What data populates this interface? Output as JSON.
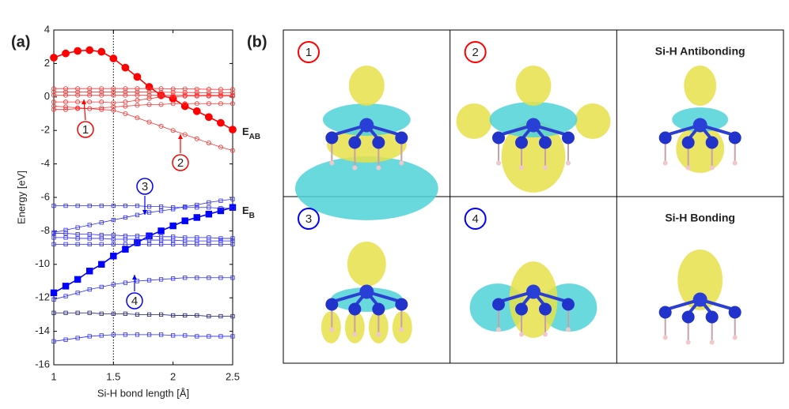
{
  "panel_a_label": "(a)",
  "panel_b_label": "(b)",
  "chart_data": {
    "type": "line",
    "x_label": "Si-H bond length [Å]",
    "y_label": "Energy [eV]",
    "xlim": [
      1,
      2.5
    ],
    "xticks": [
      1,
      1.5,
      2,
      2.5
    ],
    "ylim": [
      -16,
      4
    ],
    "yticks": [
      -16,
      -14,
      -12,
      -10,
      -8,
      -6,
      -4,
      -2,
      0,
      2,
      4
    ],
    "vline": 1.5,
    "x": [
      1,
      1.1,
      1.2,
      1.3,
      1.4,
      1.5,
      1.6,
      1.7,
      1.8,
      1.9,
      2,
      2.1,
      2.2,
      2.3,
      2.4,
      2.5
    ],
    "series": [
      {
        "color": "#ff0000",
        "marker": "circle",
        "filled": true,
        "values": [
          2.35,
          2.6,
          2.75,
          2.8,
          2.7,
          2.3,
          1.75,
          1.2,
          0.6,
          0.1,
          -0.1,
          -0.55,
          -0.85,
          -1.2,
          -1.55,
          -1.95
        ]
      },
      {
        "color": "#ff3030",
        "marker": "circle",
        "filled": false,
        "values": [
          0.5,
          0.5,
          0.5,
          0.5,
          0.5,
          0.5,
          0.5,
          0.5,
          0.5,
          0.5,
          0.48,
          0.48,
          0.47,
          0.46,
          0.45,
          0.45
        ]
      },
      {
        "color": "#ff3030",
        "marker": "circle",
        "filled": false,
        "values": [
          0.3,
          0.3,
          0.3,
          0.3,
          0.3,
          0.3,
          0.3,
          0.3,
          0.3,
          0.28,
          0.28,
          0.27,
          0.26,
          0.25,
          0.25,
          0.25
        ]
      },
      {
        "color": "#ff3030",
        "marker": "circle",
        "filled": false,
        "values": [
          0.1,
          0.1,
          0.1,
          0.1,
          0.1,
          0.1,
          0.1,
          0.1,
          0.1,
          0.1,
          0.1,
          0.1,
          0.1,
          0.1,
          0.1,
          0.1
        ]
      },
      {
        "color": "#ff3030",
        "marker": "circle",
        "filled": false,
        "values": [
          -0.3,
          -0.3,
          -0.3,
          -0.3,
          -0.3,
          -0.35,
          -0.3,
          -0.2,
          -0.1,
          0,
          0,
          0.05,
          0.05,
          0.05,
          0.05,
          0.05
        ]
      },
      {
        "color": "#ff3030",
        "marker": "circle",
        "filled": false,
        "values": [
          -0.75,
          -0.75,
          -0.7,
          -0.7,
          -0.65,
          -0.6,
          -0.55,
          -0.5,
          -0.45,
          -0.45,
          -0.4,
          -0.4,
          -0.4,
          -0.4,
          -0.4,
          -0.4
        ]
      },
      {
        "color": "#ff3030",
        "marker": "circle",
        "filled": false,
        "values": [
          -0.55,
          -0.6,
          -0.65,
          -0.7,
          -0.75,
          -0.8,
          -1.0,
          -1.25,
          -1.5,
          -1.75,
          -2.0,
          -2.25,
          -2.5,
          -2.75,
          -3.0,
          -3.2
        ]
      },
      {
        "color": "#0000ff",
        "marker": "square",
        "filled": true,
        "values": [
          -11.7,
          -11.3,
          -10.9,
          -10.4,
          -10.0,
          -9.5,
          -9.1,
          -8.7,
          -8.3,
          -8.0,
          -7.7,
          -7.4,
          -7.2,
          -7.0,
          -6.8,
          -6.6
        ]
      },
      {
        "color": "#2a2aff",
        "marker": "square",
        "filled": false,
        "values": [
          -6.5,
          -6.5,
          -6.5,
          -6.5,
          -6.5,
          -6.5,
          -6.5,
          -6.5,
          -6.55,
          -6.55,
          -6.6,
          -6.6,
          -6.6,
          -6.6,
          -6.65,
          -6.65
        ]
      },
      {
        "color": "#2a2aff",
        "marker": "square",
        "filled": false,
        "values": [
          -8.1,
          -7.95,
          -7.8,
          -7.65,
          -7.5,
          -7.35,
          -7.2,
          -7.05,
          -6.9,
          -6.8,
          -6.7,
          -6.55,
          -6.45,
          -6.3,
          -6.2,
          -6.1
        ]
      },
      {
        "color": "#2a2aff",
        "marker": "square",
        "filled": false,
        "values": [
          -8.15,
          -8.15,
          -8.2,
          -8.2,
          -8.25,
          -8.25,
          -8.3,
          -8.3,
          -8.3,
          -8.35,
          -8.35,
          -8.4,
          -8.4,
          -8.4,
          -8.45,
          -8.45
        ]
      },
      {
        "color": "#2a2aff",
        "marker": "square",
        "filled": false,
        "values": [
          -8.4,
          -8.4,
          -8.45,
          -8.45,
          -8.45,
          -8.5,
          -8.5,
          -8.5,
          -8.55,
          -8.55,
          -8.55,
          -8.6,
          -8.6,
          -8.6,
          -8.6,
          -8.6
        ]
      },
      {
        "color": "#2a2aff",
        "marker": "square",
        "filled": false,
        "values": [
          -8.8,
          -8.8,
          -8.8,
          -8.8,
          -8.8,
          -8.8,
          -8.8,
          -8.8,
          -8.8,
          -8.8,
          -8.8,
          -8.8,
          -8.8,
          -8.8,
          -8.8,
          -8.8
        ]
      },
      {
        "color": "#2a2aff",
        "marker": "square",
        "filled": false,
        "values": [
          -12.1,
          -11.9,
          -11.7,
          -11.5,
          -11.35,
          -11.2,
          -11.1,
          -11.0,
          -10.95,
          -10.9,
          -10.85,
          -10.8,
          -10.8,
          -10.8,
          -10.8,
          -10.8
        ]
      },
      {
        "color": "#1a1a80",
        "marker": "square",
        "filled": false,
        "values": [
          -12.9,
          -12.9,
          -12.9,
          -12.9,
          -12.95,
          -12.95,
          -12.95,
          -13.0,
          -13.0,
          -13.0,
          -13.05,
          -13.05,
          -13.05,
          -13.1,
          -13.1,
          -13.1
        ]
      },
      {
        "color": "#2a2aff",
        "marker": "square",
        "filled": false,
        "values": [
          -14.6,
          -14.5,
          -14.4,
          -14.3,
          -14.25,
          -14.2,
          -14.2,
          -14.2,
          -14.2,
          -14.2,
          -14.25,
          -14.25,
          -14.3,
          -14.3,
          -14.3,
          -14.3
        ]
      }
    ],
    "annotations": [
      {
        "text": "E",
        "sub": "AB",
        "color": "#ff0000"
      },
      {
        "text": "E",
        "sub": "B",
        "color": "#0000ff"
      },
      {
        "text": "1",
        "color": "#ff0000"
      },
      {
        "text": "2",
        "color": "#ff0000"
      },
      {
        "text": "3",
        "color": "#0000ff"
      },
      {
        "text": "4",
        "color": "#0000ff"
      }
    ]
  },
  "panel_b": {
    "cells": [
      {
        "label": "1",
        "color": "#ff0000"
      },
      {
        "label": "2",
        "color": "#ff0000"
      },
      {
        "label": "Si-H Antibonding",
        "color": "#ff0000"
      },
      {
        "label": "3",
        "color": "#0000ff"
      },
      {
        "label": "4",
        "color": "#0000ff"
      },
      {
        "label": "Si-H Bonding",
        "color": "#0000ff"
      }
    ]
  }
}
